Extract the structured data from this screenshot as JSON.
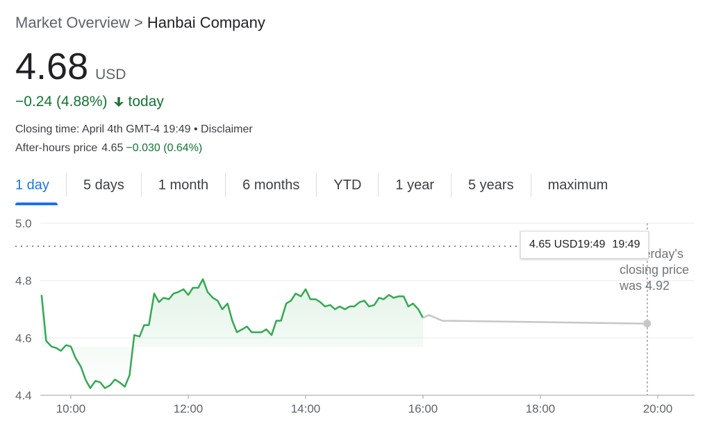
{
  "breadcrumb": {
    "parent": "Market Overview",
    "separator": ">",
    "current": "Hanbai Company"
  },
  "quote": {
    "price": "4.68",
    "currency": "USD",
    "change": "−0.24 (4.88%)",
    "direction": "down",
    "change_period": "today",
    "closing_time": "Closing time: April 4th GMT-4 19:49 • Disclaimer",
    "after_hours_label": "After-hours price",
    "after_hours_value": "4.65",
    "after_hours_change": "−0.030 (0.64%)"
  },
  "tabs": [
    {
      "label": "1 day",
      "active": true
    },
    {
      "label": "5 days",
      "active": false
    },
    {
      "label": "1 month",
      "active": false
    },
    {
      "label": "6 months",
      "active": false
    },
    {
      "label": "YTD",
      "active": false
    },
    {
      "label": "1 year",
      "active": false
    },
    {
      "label": "5 years",
      "active": false
    },
    {
      "label": "maximum",
      "active": false
    }
  ],
  "tooltip": {
    "price": "4.65 USD",
    "time1": "19:49",
    "time2": "19:49"
  },
  "colors": {
    "up_down_green": "#137333",
    "line_green": "#34a853",
    "accent_blue": "#1a73e8",
    "after_hours_gray": "#c4c7c5"
  },
  "chart_data": {
    "type": "line",
    "ylim": [
      4.4,
      5.0
    ],
    "yticks": [
      "5.0",
      "4.8",
      "4.6",
      "4.4"
    ],
    "xticks": [
      "10:00",
      "12:00",
      "14:00",
      "16:00",
      "18:00",
      "20:00"
    ],
    "xlim_hours": [
      9.5,
      20.5
    ],
    "previous_close": 4.92,
    "previous_close_note": [
      "Yesterday's",
      "closing price",
      "was 4.92"
    ],
    "series": [
      {
        "session": "regular",
        "x": [
          9.5,
          9.58,
          9.67,
          9.75,
          9.83,
          9.92,
          10.0,
          10.08,
          10.17,
          10.25,
          10.33,
          10.42,
          10.5,
          10.58,
          10.67,
          10.75,
          10.83,
          10.92,
          11.0,
          11.08,
          11.17,
          11.25,
          11.33,
          11.42,
          11.5,
          11.58,
          11.67,
          11.75,
          11.83,
          11.92,
          12.0,
          12.08,
          12.17,
          12.25,
          12.33,
          12.42,
          12.5,
          12.58,
          12.67,
          12.75,
          12.83,
          12.92,
          13.0,
          13.08,
          13.17,
          13.25,
          13.33,
          13.42,
          13.5,
          13.58,
          13.67,
          13.75,
          13.83,
          13.92,
          14.0,
          14.08,
          14.17,
          14.25,
          14.33,
          14.42,
          14.5,
          14.58,
          14.67,
          14.75,
          14.83,
          14.92,
          15.0,
          15.08,
          15.17,
          15.25,
          15.33,
          15.42,
          15.5,
          15.58,
          15.67,
          15.75,
          15.83,
          15.92,
          16.0
        ],
        "y": [
          4.75,
          4.59,
          4.57,
          4.565,
          4.555,
          4.575,
          4.57,
          4.53,
          4.5,
          4.455,
          4.425,
          4.45,
          4.445,
          4.425,
          4.435,
          4.455,
          4.445,
          4.43,
          4.47,
          4.61,
          4.605,
          4.645,
          4.645,
          4.755,
          4.725,
          4.74,
          4.735,
          4.755,
          4.76,
          4.77,
          4.75,
          4.775,
          4.775,
          4.805,
          4.76,
          4.74,
          4.73,
          4.7,
          4.72,
          4.66,
          4.62,
          4.63,
          4.64,
          4.62,
          4.62,
          4.62,
          4.63,
          4.61,
          4.66,
          4.66,
          4.72,
          4.73,
          4.755,
          4.745,
          4.77,
          4.735,
          4.735,
          4.725,
          4.71,
          4.715,
          4.7,
          4.71,
          4.7,
          4.71,
          4.71,
          4.725,
          4.73,
          4.71,
          4.715,
          4.74,
          4.735,
          4.75,
          4.74,
          4.745,
          4.745,
          4.71,
          4.72,
          4.7,
          4.67
        ]
      },
      {
        "session": "after-hours",
        "x": [
          16.0,
          16.1,
          16.33,
          19.82
        ],
        "y": [
          4.67,
          4.68,
          4.66,
          4.65
        ]
      }
    ]
  }
}
